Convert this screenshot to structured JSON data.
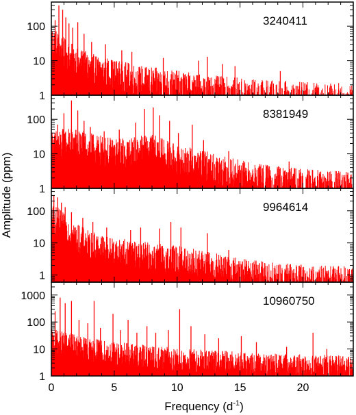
{
  "figure": {
    "xlabel_main": "Frequency (d",
    "xlabel_sup": "-1",
    "xlabel_end": ")",
    "ylabel": "Amplitude (ppm)",
    "line_color": "#ff0000"
  },
  "chart_data": [
    {
      "type": "line",
      "title": "3240411",
      "xlabel": "Frequency (d-1)",
      "ylabel": "Amplitude (ppm)",
      "xlim": [
        0,
        24
      ],
      "ylim": [
        1,
        500
      ],
      "yscale": "log",
      "x_ticks": [
        0,
        5,
        10,
        15,
        20
      ],
      "x_tick_labels": [
        "0",
        "5",
        "10",
        "15",
        "20"
      ],
      "y_ticks": [
        1,
        10,
        100
      ],
      "y_tick_labels": [
        "1",
        "10",
        "100"
      ],
      "envelope": {
        "x": [
          0,
          0.5,
          1,
          2,
          3,
          5,
          7,
          10,
          13,
          16,
          20,
          24
        ],
        "y": [
          60,
          40,
          25,
          14,
          9,
          6,
          4,
          2.8,
          2,
          1.6,
          1.3,
          1.2
        ]
      },
      "peaks": [
        {
          "x": 0.3,
          "y": 150
        },
        {
          "x": 0.6,
          "y": 400
        },
        {
          "x": 0.9,
          "y": 300
        },
        {
          "x": 1.15,
          "y": 180
        },
        {
          "x": 1.4,
          "y": 120
        },
        {
          "x": 1.7,
          "y": 90
        },
        {
          "x": 2.1,
          "y": 130
        },
        {
          "x": 2.6,
          "y": 60
        },
        {
          "x": 3.2,
          "y": 35
        },
        {
          "x": 4.3,
          "y": 30
        },
        {
          "x": 5.6,
          "y": 20
        },
        {
          "x": 6.4,
          "y": 18
        },
        {
          "x": 8.9,
          "y": 12
        },
        {
          "x": 11.7,
          "y": 10
        },
        {
          "x": 12.4,
          "y": 13
        },
        {
          "x": 13.6,
          "y": 8
        },
        {
          "x": 14.6,
          "y": 7
        },
        {
          "x": 18.2,
          "y": 5
        }
      ]
    },
    {
      "type": "line",
      "title": "8381949",
      "xlabel": "Frequency (d-1)",
      "ylabel": "Amplitude (ppm)",
      "xlim": [
        0,
        24
      ],
      "ylim": [
        1,
        500
      ],
      "yscale": "log",
      "x_ticks": [
        0,
        5,
        10,
        15,
        20
      ],
      "x_tick_labels": [
        "0",
        "5",
        "10",
        "15",
        "20"
      ],
      "y_ticks": [
        1,
        10,
        100
      ],
      "y_tick_labels": [
        "1",
        "10",
        "100"
      ],
      "envelope": {
        "x": [
          0,
          1,
          2,
          3,
          5,
          7,
          8,
          10,
          12,
          14,
          16,
          20,
          24
        ],
        "y": [
          25,
          30,
          30,
          22,
          15,
          18,
          20,
          10,
          7,
          4.5,
          3,
          2,
          1.6
        ]
      },
      "peaks": [
        {
          "x": 0.5,
          "y": 70
        },
        {
          "x": 1.0,
          "y": 150
        },
        {
          "x": 1.6,
          "y": 350
        },
        {
          "x": 2.1,
          "y": 180
        },
        {
          "x": 2.6,
          "y": 90
        },
        {
          "x": 3.1,
          "y": 60
        },
        {
          "x": 4.2,
          "y": 45
        },
        {
          "x": 5.4,
          "y": 50
        },
        {
          "x": 6.7,
          "y": 80
        },
        {
          "x": 7.4,
          "y": 200
        },
        {
          "x": 8.1,
          "y": 220
        },
        {
          "x": 8.6,
          "y": 130
        },
        {
          "x": 9.4,
          "y": 90
        },
        {
          "x": 10.1,
          "y": 40
        },
        {
          "x": 11.2,
          "y": 70
        },
        {
          "x": 12.1,
          "y": 25
        },
        {
          "x": 14.1,
          "y": 12
        },
        {
          "x": 18.9,
          "y": 6
        },
        {
          "x": 22.1,
          "y": 3
        }
      ]
    },
    {
      "type": "line",
      "title": "9964614",
      "xlabel": "Frequency (d-1)",
      "ylabel": "Amplitude (ppm)",
      "xlim": [
        0,
        24
      ],
      "ylim": [
        0.6,
        500
      ],
      "yscale": "log",
      "x_ticks": [
        0,
        5,
        10,
        15,
        20
      ],
      "x_tick_labels": [
        "0",
        "5",
        "10",
        "15",
        "20"
      ],
      "y_ticks": [
        1,
        10,
        100
      ],
      "y_tick_labels": [
        "1",
        "10",
        "100"
      ],
      "envelope": {
        "x": [
          0,
          0.5,
          1,
          2,
          3,
          5,
          7,
          9,
          11,
          13,
          15,
          18,
          21,
          24
        ],
        "y": [
          90,
          70,
          45,
          22,
          13,
          8,
          6,
          5,
          4,
          2.6,
          1.8,
          1.3,
          1.1,
          1.0
        ]
      },
      "peaks": [
        {
          "x": 0.2,
          "y": 300
        },
        {
          "x": 0.5,
          "y": 260
        },
        {
          "x": 0.8,
          "y": 180
        },
        {
          "x": 1.1,
          "y": 130
        },
        {
          "x": 1.6,
          "y": 90
        },
        {
          "x": 2.5,
          "y": 60
        },
        {
          "x": 3.3,
          "y": 45
        },
        {
          "x": 4.4,
          "y": 30
        },
        {
          "x": 6.3,
          "y": 25
        },
        {
          "x": 7.1,
          "y": 30
        },
        {
          "x": 8.6,
          "y": 28
        },
        {
          "x": 9.5,
          "y": 45
        },
        {
          "x": 10.3,
          "y": 30
        },
        {
          "x": 12.4,
          "y": 20
        },
        {
          "x": 14.1,
          "y": 6
        }
      ]
    },
    {
      "type": "line",
      "title": "10960750",
      "xlabel": "Frequency (d-1)",
      "ylabel": "Amplitude (ppm)",
      "xlim": [
        0,
        24
      ],
      "ylim": [
        1,
        3000
      ],
      "yscale": "log",
      "x_ticks": [
        0,
        5,
        10,
        15,
        20
      ],
      "x_tick_labels": [
        "0",
        "5",
        "10",
        "15",
        "20"
      ],
      "y_ticks": [
        1,
        10,
        100,
        1000
      ],
      "y_tick_labels": [
        "1",
        "10",
        "100",
        "1000"
      ],
      "envelope": {
        "x": [
          0,
          1,
          2,
          3,
          5,
          7,
          10,
          13,
          16,
          20,
          24
        ],
        "y": [
          30,
          25,
          18,
          14,
          10,
          8,
          6,
          5,
          4,
          3.5,
          3
        ]
      },
      "peaks": [
        {
          "x": 0.3,
          "y": 250
        },
        {
          "x": 0.7,
          "y": 800
        },
        {
          "x": 1.1,
          "y": 500
        },
        {
          "x": 1.6,
          "y": 600
        },
        {
          "x": 2.2,
          "y": 120
        },
        {
          "x": 2.9,
          "y": 90
        },
        {
          "x": 3.4,
          "y": 600
        },
        {
          "x": 3.9,
          "y": 60
        },
        {
          "x": 4.9,
          "y": 200
        },
        {
          "x": 5.5,
          "y": 50
        },
        {
          "x": 6.1,
          "y": 120
        },
        {
          "x": 6.8,
          "y": 40
        },
        {
          "x": 7.6,
          "y": 70
        },
        {
          "x": 8.3,
          "y": 40
        },
        {
          "x": 9.3,
          "y": 50
        },
        {
          "x": 10.2,
          "y": 300
        },
        {
          "x": 11.1,
          "y": 70
        },
        {
          "x": 12.2,
          "y": 35
        },
        {
          "x": 13.3,
          "y": 25
        },
        {
          "x": 15.1,
          "y": 30
        },
        {
          "x": 16.3,
          "y": 18
        },
        {
          "x": 18.7,
          "y": 12
        },
        {
          "x": 20.8,
          "y": 40
        },
        {
          "x": 21.9,
          "y": 10
        }
      ]
    }
  ]
}
